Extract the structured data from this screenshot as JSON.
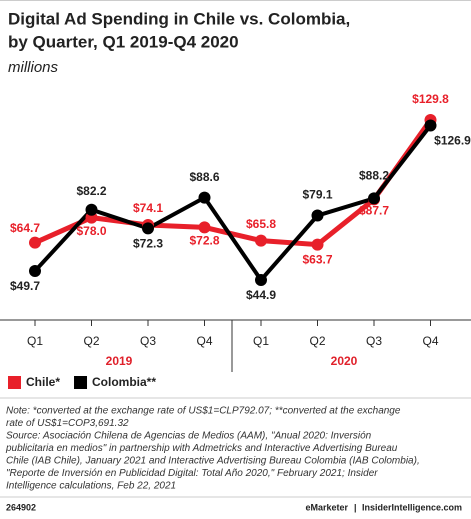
{
  "chart_data": {
    "type": "line",
    "title_lines": [
      "Digital Ad Spending in Chile vs. Colombia,",
      "by Quarter, Q1 2019-Q4 2020"
    ],
    "subtitle": "millions",
    "categories": [
      "Q1",
      "Q2",
      "Q3",
      "Q4",
      "Q1",
      "Q2",
      "Q3",
      "Q4"
    ],
    "groups": [
      "2019",
      "2020"
    ],
    "series": [
      {
        "name": "Chile*",
        "color": "#e8202a",
        "values": [
          64.7,
          78.0,
          74.1,
          72.8,
          65.8,
          63.7,
          87.7,
          129.8
        ],
        "value_labels": [
          "$64.7",
          "$78.0",
          "$74.1",
          "$72.8",
          "$65.8",
          "$63.7",
          "$87.7",
          "$129.8"
        ]
      },
      {
        "name": "Colombia**",
        "color": "#000000",
        "values": [
          49.7,
          82.2,
          72.3,
          88.6,
          44.9,
          79.1,
          88.2,
          126.9
        ],
        "value_labels": [
          "$49.7",
          "$82.2",
          "$72.3",
          "$88.6",
          "$44.9",
          "$79.1",
          "$88.2",
          "$126.9"
        ]
      }
    ],
    "note_lines": [
      "Note: *converted at the exchange rate of US$1=CLP792.07; **converted at the exchange",
      "rate of US$1=COP3,691.32",
      "Source: Asociación Chilena de Agencias de Medios (AAM), \"Anual 2020: Inversión",
      "publicitaria en medios\" in partnership with Admetricks and Interactive Advertising Bureau",
      "Chile (IAB Chile), January 2021 and Interactive Advertising Bureau Colombia (IAB Colombia),",
      "\"Reporte de Inversión en Publicidad Digital: Total Año 2020,\" February 2021; Insider",
      "Intelligence calculations, Feb 22, 2021"
    ],
    "footer_id": "264902",
    "footer_brand": "eMarketer",
    "footer_site": "InsiderIntelligence.com"
  }
}
